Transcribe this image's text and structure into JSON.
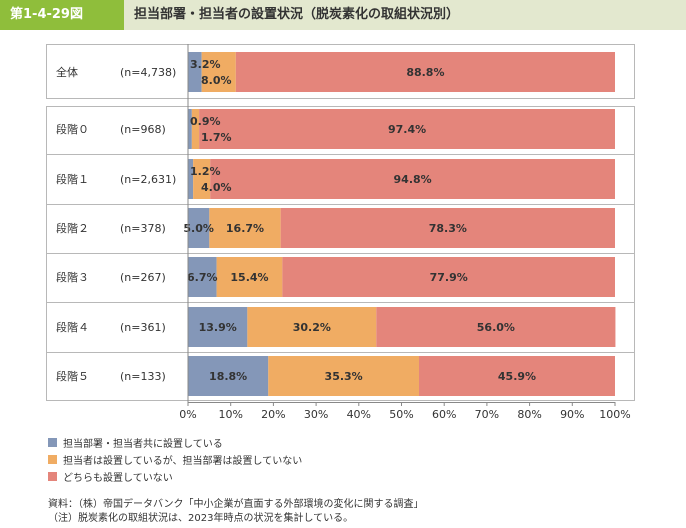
{
  "header": {
    "figure_number": "第1-4-29図",
    "title": "担当部署・担当者の設置状況（脱炭素化の取組状況別）"
  },
  "colors": {
    "header_accent": "#8fbe3b",
    "header_band": "#e3e8cf",
    "series": [
      "#8497b8",
      "#f0ac63",
      "#e4857b"
    ]
  },
  "chart_data": {
    "type": "bar",
    "orientation": "horizontal",
    "stacked": true,
    "categories": [
      "全体",
      "段階０",
      "段階１",
      "段階２",
      "段階３",
      "段階４",
      "段階５"
    ],
    "sample_sizes": [
      "(n=4,738)",
      "(n=968)",
      "(n=2,631)",
      "(n=378)",
      "(n=267)",
      "(n=361)",
      "(n=133)"
    ],
    "series": [
      {
        "name": "担当部署・担当者共に設置している",
        "values": [
          3.2,
          0.9,
          1.2,
          5.0,
          6.7,
          13.9,
          18.8
        ]
      },
      {
        "name": "担当者は設置しているが、担当部署は設置していない",
        "values": [
          8.0,
          1.7,
          4.0,
          16.7,
          15.4,
          30.2,
          35.3
        ]
      },
      {
        "name": "どちらも設置していない",
        "values": [
          88.8,
          97.4,
          94.8,
          78.3,
          77.9,
          56.0,
          45.9
        ]
      }
    ],
    "data_labels": [
      [
        "3.2%",
        "8.0%",
        "88.8%"
      ],
      [
        "0.9%",
        "1.7%",
        "97.4%"
      ],
      [
        "1.2%",
        "4.0%",
        "94.8%"
      ],
      [
        "5.0%",
        "16.7%",
        "78.3%"
      ],
      [
        "6.7%",
        "15.4%",
        "77.9%"
      ],
      [
        "13.9%",
        "30.2%",
        "56.0%"
      ],
      [
        "18.8%",
        "35.3%",
        "45.9%"
      ]
    ],
    "xlim": [
      0,
      100
    ],
    "x_ticks": [
      "0%",
      "10%",
      "20%",
      "30%",
      "40%",
      "50%",
      "60%",
      "70%",
      "80%",
      "90%",
      "100%"
    ],
    "legend_position": "bottom-left",
    "grid": false
  },
  "notes": {
    "source": "資料：（株）帝国データバンク「中小企業が直面する外部環境の変化に関する調査」",
    "note": "（注）脱炭素化の取組状況は、2023年時点の状況を集計している。"
  }
}
